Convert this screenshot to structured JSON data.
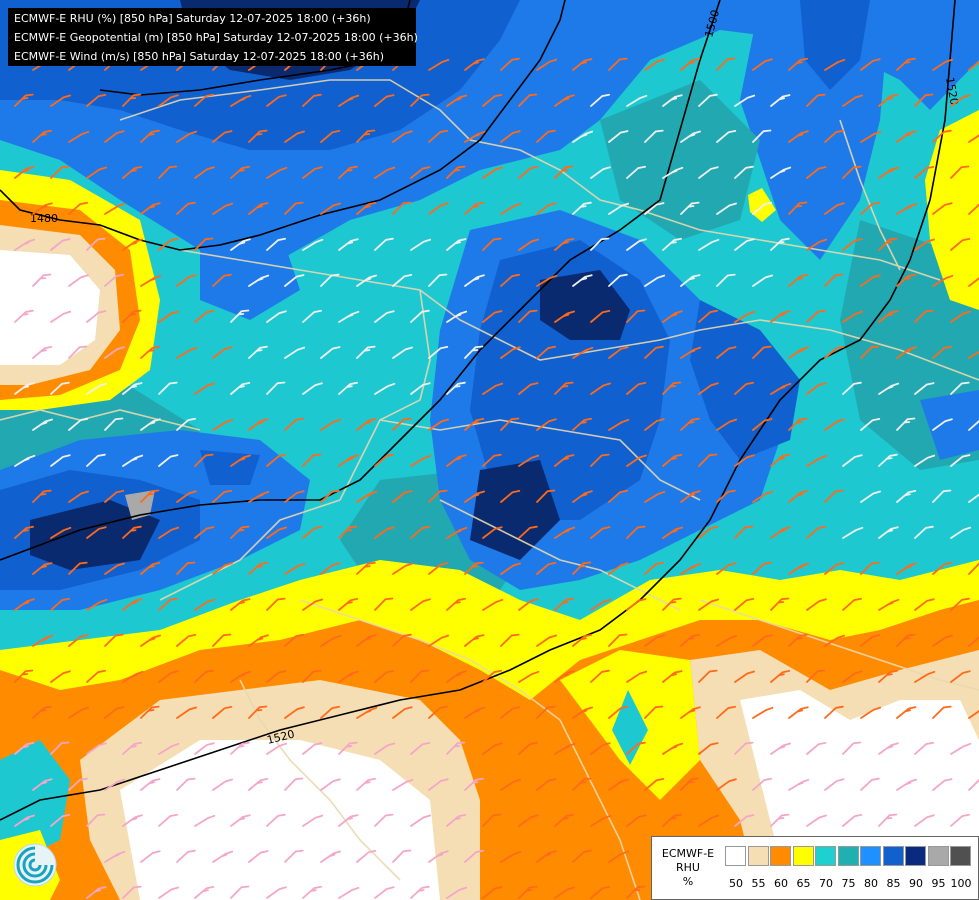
{
  "header": {
    "lines": [
      "ECMWF-E RHU (%) [850 hPa] Saturday 12-07-2025 18:00 (+36h)",
      "ECMWF-E Geopotential (m) [850 hPa] Saturday 12-07-2025 18:00 (+36h)",
      "ECMWF-E Wind (m/s) [850 hPa] Saturday 12-07-2025 18:00 (+36h)"
    ]
  },
  "contours": {
    "labels": [
      "1480",
      "1500",
      "1520",
      "1520"
    ]
  },
  "legend": {
    "title_lines": [
      "ECMWF-E",
      "RHU",
      "%"
    ],
    "ticks": [
      "50",
      "55",
      "60",
      "65",
      "70",
      "75",
      "80",
      "85",
      "90",
      "95",
      "100"
    ],
    "colors": [
      "#ffffff",
      "#f5deb3",
      "#ff8c00",
      "#ffff00",
      "#1ed0d0",
      "#20b0b0",
      "#1e90ff",
      "#1060d0",
      "#0a2a80",
      "#a9a9a9",
      "#505050"
    ]
  },
  "palette": {
    "white": "#ffffff",
    "wheat": "#f5deb3",
    "orange": "#ff8c00",
    "yellow": "#ffff00",
    "cyan": "#1ec8d0",
    "teal": "#22a8b0",
    "blue": "#1e7ae8",
    "dark_blue": "#1050b8",
    "navy": "#0a2a70",
    "border": "#e8d8b0",
    "isoline": "#000000"
  },
  "icons": [
    "ecmwf-logo-icon",
    "wind-barb-icon"
  ]
}
